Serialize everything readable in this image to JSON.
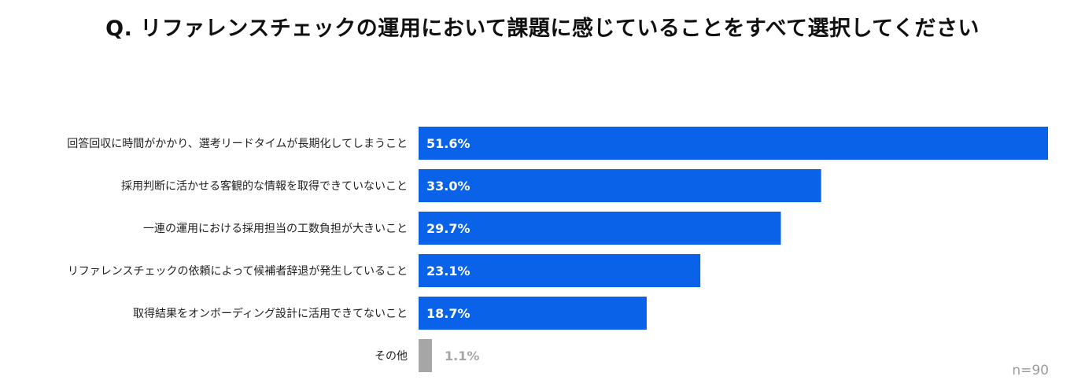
{
  "chart_data": {
    "type": "bar",
    "orientation": "horizontal",
    "title": "Q. リファレンスチェックの運用において課題に感じていることをすべて選択してください",
    "categories": [
      "回答回収に時間がかかり、選考リードタイムが長期化してしまうこと",
      "採用判断に活かせる客観的な情報を取得できていないこと",
      "一連の運用における採用担当の工数負担が大きいこと",
      "リファレンスチェックの依頼によって候補者辞退が発生していること",
      "取得結果をオンボーディング設計に活用できてないこと",
      "その他"
    ],
    "values": [
      51.6,
      33.0,
      29.7,
      23.1,
      18.7,
      1.1
    ],
    "value_labels": [
      "51.6%",
      "33.0%",
      "29.7%",
      "23.1%",
      "18.7%",
      "1.1%"
    ],
    "sample_size": "n=90",
    "xlim": [
      0,
      51.6
    ],
    "colors": {
      "primary": "#0a62e8",
      "other": "#a6a6a6",
      "label_inside": "#ffffff",
      "label_other": "#a6a6a6"
    }
  }
}
